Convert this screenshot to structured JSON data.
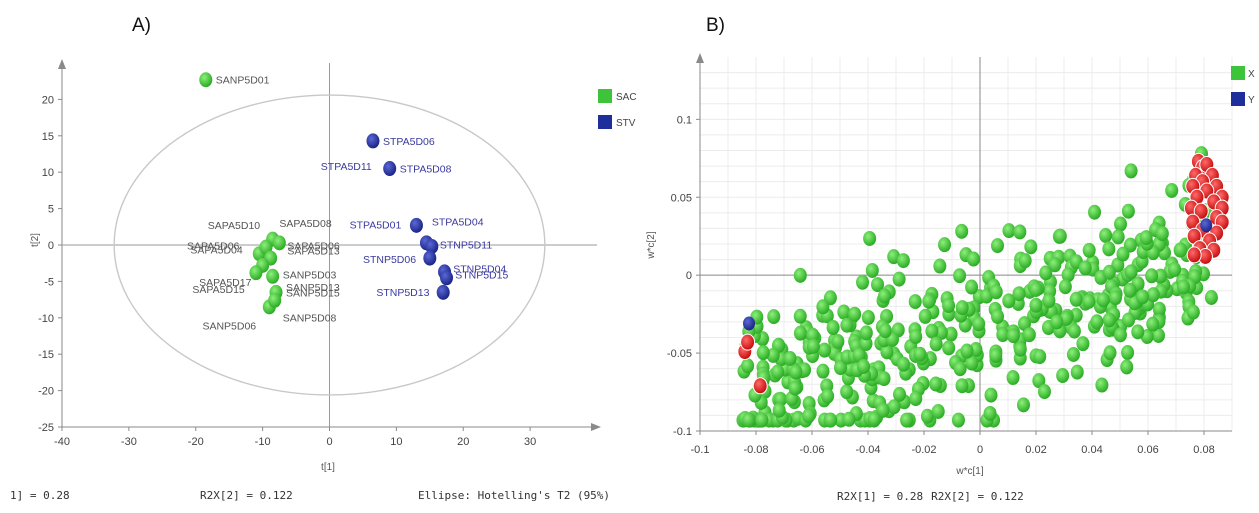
{
  "chart_data": [
    {
      "type": "scatter",
      "panel_label": "A)",
      "xlabel": "t[1]",
      "ylabel": "t[2]",
      "xlim": [
        -40,
        40
      ],
      "ylim": [
        -25,
        25
      ],
      "xticks": [
        -40,
        -30,
        -20,
        -10,
        0,
        10,
        20,
        30
      ],
      "yticks": [
        20,
        15,
        10,
        5,
        0,
        -5,
        -10,
        -15,
        -20,
        -25
      ],
      "grid": false,
      "legend_position": "right",
      "colors": {
        "SAC": "#3ec43a",
        "STV": "#1e2e9a"
      },
      "series": [
        {
          "name": "SAC",
          "points": [
            {
              "x": -18.5,
              "y": 22.7,
              "label": "SANP5D01"
            },
            {
              "x": -8.5,
              "y": 0.8,
              "label": ""
            },
            {
              "x": -7.5,
              "y": 0.3,
              "label": ""
            },
            {
              "x": -10.5,
              "y": -1.2,
              "label": ""
            },
            {
              "x": -9.5,
              "y": -0.3,
              "label": ""
            },
            {
              "x": -8.8,
              "y": -1.8,
              "label": ""
            },
            {
              "x": -10.0,
              "y": -2.8,
              "label": ""
            },
            {
              "x": -11.0,
              "y": -3.8,
              "label": ""
            },
            {
              "x": -8.5,
              "y": -4.3,
              "label": ""
            },
            {
              "x": -8.0,
              "y": -6.5,
              "label": ""
            },
            {
              "x": -9.0,
              "y": -8.5,
              "label": ""
            },
            {
              "x": -8.2,
              "y": -7.6,
              "label": ""
            }
          ]
        },
        {
          "name": "STV",
          "points": [
            {
              "x": 6.5,
              "y": 14.3,
              "label": "STPA5D06"
            },
            {
              "x": 9.0,
              "y": 10.5,
              "label": "STPA5D08"
            },
            {
              "x": 13.0,
              "y": 2.7,
              "label": ""
            },
            {
              "x": 14.5,
              "y": 0.3,
              "label": ""
            },
            {
              "x": 15.3,
              "y": -0.2,
              "label": ""
            },
            {
              "x": 15.0,
              "y": -1.8,
              "label": ""
            },
            {
              "x": 17.2,
              "y": -3.7,
              "label": ""
            },
            {
              "x": 17.5,
              "y": -4.5,
              "label": ""
            },
            {
              "x": 17.0,
              "y": -6.5,
              "label": ""
            }
          ]
        }
      ],
      "annotations": [
        {
          "text": "SAPA5D10",
          "x": -18.2,
          "y": 2.2,
          "group": "SAC"
        },
        {
          "text": "SAPA5D08",
          "x": -7.5,
          "y": 2.5,
          "group": "SAC"
        },
        {
          "text": "SAPA5D06",
          "x": -21.3,
          "y": -0.6,
          "group": "SAC"
        },
        {
          "text": "SAPA5D04",
          "x": -20.8,
          "y": -1.2,
          "group": "SAC"
        },
        {
          "text": "SAPA5D06",
          "x": -6.3,
          "y": -0.6,
          "group": "SAC"
        },
        {
          "text": "SAPA5D13",
          "x": -6.3,
          "y": -1.3,
          "group": "SAC"
        },
        {
          "text": "SAPA5D17",
          "x": -19.5,
          "y": -5.6,
          "group": "SAC"
        },
        {
          "text": "SAPA5D15",
          "x": -20.5,
          "y": -6.6,
          "group": "SAC"
        },
        {
          "text": "SANP5D03",
          "x": -7.0,
          "y": -4.6,
          "group": "SAC"
        },
        {
          "text": "SANP5D13",
          "x": -6.5,
          "y": -6.3,
          "group": "SAC"
        },
        {
          "text": "SANP5D15",
          "x": -6.5,
          "y": -7.1,
          "group": "SAC"
        },
        {
          "text": "SANP5D06",
          "x": -19.0,
          "y": -11.6,
          "group": "SAC"
        },
        {
          "text": "SANP5D08",
          "x": -7.0,
          "y": -10.5,
          "group": "SAC"
        },
        {
          "text": "STPA5D11",
          "x": -1.3,
          "y": 10.3,
          "group": "STV"
        },
        {
          "text": "STPA5D01",
          "x": 3.0,
          "y": 2.3,
          "group": "STV"
        },
        {
          "text": "STPA5D04",
          "x": 15.3,
          "y": 2.7,
          "group": "STV"
        },
        {
          "text": "STNP5D11",
          "x": 16.5,
          "y": -0.5,
          "group": "STV"
        },
        {
          "text": "STNP5D06",
          "x": 5.0,
          "y": -2.5,
          "group": "STV"
        },
        {
          "text": "STNP5D04",
          "x": 18.5,
          "y": -3.8,
          "group": "STV"
        },
        {
          "text": "STNP5D15",
          "x": 18.8,
          "y": -4.6,
          "group": "STV"
        },
        {
          "text": "STNP5D13",
          "x": 7.0,
          "y": -7.0,
          "group": "STV"
        }
      ],
      "ellipse": {
        "cx": 0,
        "cy": 0,
        "rx": 32.2,
        "ry": 20.6
      },
      "footer": [
        "1] = 0.28",
        "R2X[2] = 0.122",
        "Ellipse: Hotelling's T2 (95%)"
      ]
    },
    {
      "type": "scatter",
      "panel_label": "B)",
      "xlabel": "w*c[1]",
      "ylabel": "w*c[2]",
      "xlim": [
        -0.1,
        0.09
      ],
      "ylim": [
        -0.1,
        0.14
      ],
      "xticks": [
        "-0.1",
        "-0.08",
        "-0.06",
        "-0.04",
        "-0.02",
        "0",
        "0.02",
        "0.04",
        "0.06",
        "0.08"
      ],
      "yticks": [
        "0.1",
        "0.05",
        "0",
        "-0.05",
        "-0.1"
      ],
      "grid": true,
      "legend_position": "top-right",
      "colors": {
        "X": "#3ec43a",
        "Y": "#1e2e9a",
        "highlight": "#e01818"
      },
      "legend": [
        "X",
        "Y"
      ],
      "series": [
        {
          "name": "Y",
          "points": [
            {
              "x": -0.0825,
              "y": -0.031
            },
            {
              "x": 0.0808,
              "y": 0.032
            }
          ]
        },
        {
          "name": "X (highlighted, red)",
          "points": [
            {
              "x": -0.084,
              "y": -0.049
            },
            {
              "x": -0.083,
              "y": -0.043
            },
            {
              "x": -0.0785,
              "y": -0.071
            },
            {
              "x": 0.078,
              "y": 0.073
            },
            {
              "x": 0.0795,
              "y": 0.069
            },
            {
              "x": 0.081,
              "y": 0.071
            },
            {
              "x": 0.077,
              "y": 0.064
            },
            {
              "x": 0.083,
              "y": 0.064
            },
            {
              "x": 0.0795,
              "y": 0.06
            },
            {
              "x": 0.0845,
              "y": 0.057
            },
            {
              "x": 0.076,
              "y": 0.057
            },
            {
              "x": 0.081,
              "y": 0.054
            },
            {
              "x": 0.0865,
              "y": 0.05
            },
            {
              "x": 0.0775,
              "y": 0.05
            },
            {
              "x": 0.0835,
              "y": 0.047
            },
            {
              "x": 0.0755,
              "y": 0.043
            },
            {
              "x": 0.0865,
              "y": 0.043
            },
            {
              "x": 0.079,
              "y": 0.041
            },
            {
              "x": 0.0845,
              "y": 0.037
            },
            {
              "x": 0.076,
              "y": 0.034
            },
            {
              "x": 0.0865,
              "y": 0.034
            },
            {
              "x": 0.0795,
              "y": 0.029
            },
            {
              "x": 0.0845,
              "y": 0.027
            },
            {
              "x": 0.0765,
              "y": 0.025
            },
            {
              "x": 0.082,
              "y": 0.022
            },
            {
              "x": 0.0785,
              "y": 0.017
            },
            {
              "x": 0.0835,
              "y": 0.016
            },
            {
              "x": 0.0805,
              "y": 0.012
            },
            {
              "x": 0.0765,
              "y": 0.013
            }
          ]
        }
      ],
      "x_cloud": {
        "count": 450,
        "x_range": [
          -0.085,
          0.083
        ],
        "y_range": [
          -0.093,
          0.1
        ],
        "trend": "positive"
      },
      "footer": [
        "R2X[1] = 0.28",
        "R2X[2] = 0.122"
      ]
    }
  ]
}
